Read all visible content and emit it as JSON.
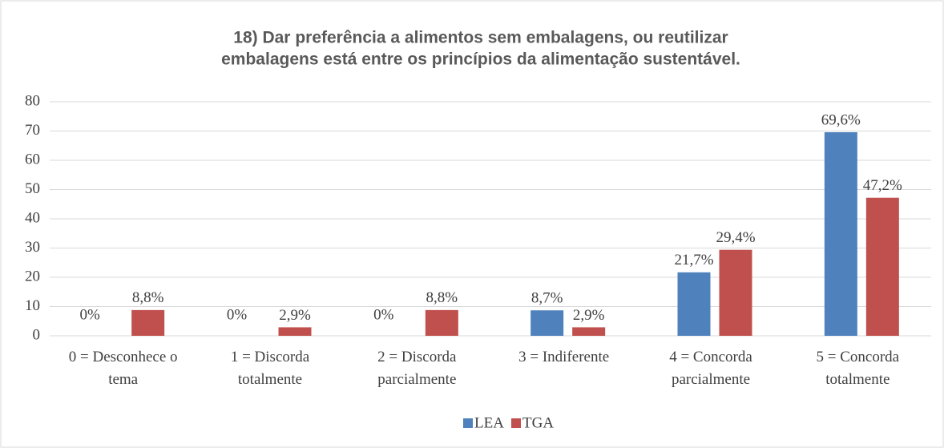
{
  "chart_data": {
    "type": "bar",
    "title": [
      "18)  Dar preferência a alimentos sem embalagens, ou reutilizar",
      "embalagens está entre os princípios da alimentação sustentável."
    ],
    "categories": [
      [
        "0 = Desconhece o",
        "tema"
      ],
      [
        "1 = Discorda",
        "totalmente"
      ],
      [
        "2 = Discorda",
        "parcialmente"
      ],
      [
        "3 = Indiferente"
      ],
      [
        "4 = Concorda",
        "parcialmente"
      ],
      [
        "5 = Concorda",
        "totalmente"
      ]
    ],
    "series": [
      {
        "name": "LEA",
        "color": "#4f81bd",
        "values": [
          0,
          0,
          0,
          8.7,
          21.7,
          69.6
        ],
        "value_labels": [
          "0%",
          "0%",
          "0%",
          "8,7%",
          "21,7%",
          "69,6%"
        ]
      },
      {
        "name": "TGA",
        "color": "#c0504d",
        "values": [
          8.8,
          2.9,
          8.8,
          2.9,
          29.4,
          47.2
        ],
        "value_labels": [
          "8,8%",
          "2,9%",
          "8,8%",
          "2,9%",
          "29,4%",
          "47,2%"
        ]
      }
    ],
    "ylim": [
      0,
      80
    ],
    "yticks": [
      0,
      10,
      20,
      30,
      40,
      50,
      60,
      70,
      80
    ],
    "grid": true,
    "legend": "bottom"
  }
}
